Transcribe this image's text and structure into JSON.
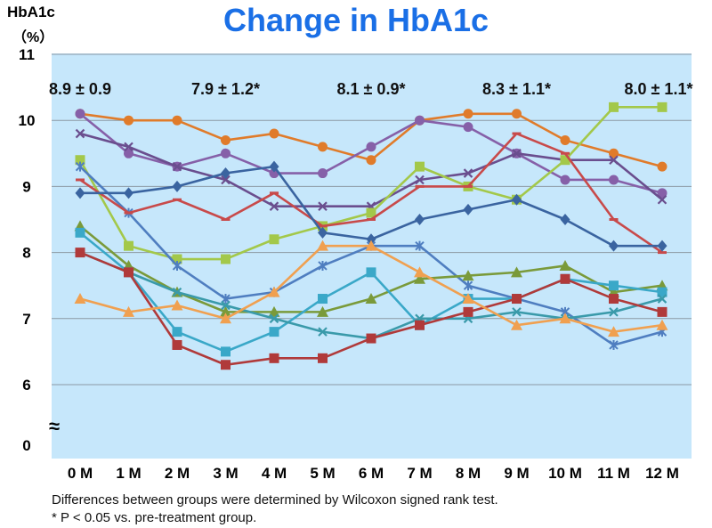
{
  "title": "Change in HbA1c",
  "y_axis": {
    "label": "HbA1c",
    "unit": "（%）"
  },
  "footnotes": [
    "Differences between groups were determined by Wilcoxon signed rank test.",
    "* P < 0.05 vs. pre-treatment group."
  ],
  "axis_break_symbol": "≈",
  "colors": {
    "plot_background": "#c6e7fb",
    "gridline": "#8c9aa4"
  },
  "chart_data": {
    "type": "line",
    "x": [
      "0 M",
      "1 M",
      "2 M",
      "3 M",
      "4 M",
      "5 M",
      "6 M",
      "7 M",
      "8 M",
      "9 M",
      "10 M",
      "11 M",
      "12 M"
    ],
    "y_ticks": [
      11,
      10,
      9,
      8,
      7,
      6,
      0
    ],
    "ylim": [
      6,
      11
    ],
    "y_axis_break": "between 0 and 6",
    "grid": true,
    "annotations": [
      {
        "text": "8.9 ± 0.9",
        "at_x": "0 M"
      },
      {
        "text": "7.9 ± 1.2*",
        "at_x": "3 M"
      },
      {
        "text": "8.1 ± 0.9*",
        "at_x": "6 M"
      },
      {
        "text": "8.3 ± 1.1*",
        "at_x": "9 M"
      },
      {
        "text": "8.0 ± 1.1*",
        "at_x": "12 M"
      }
    ],
    "series": [
      {
        "color": "#e07b2a",
        "marker": "circle",
        "values": [
          10.1,
          10.0,
          10.0,
          9.7,
          9.8,
          9.6,
          9.4,
          10.0,
          10.1,
          10.1,
          9.7,
          9.5,
          9.3
        ]
      },
      {
        "color": "#8660a8",
        "marker": "circle",
        "values": [
          10.1,
          9.5,
          9.3,
          9.5,
          9.2,
          9.2,
          9.6,
          10.0,
          9.9,
          9.5,
          9.1,
          9.1,
          8.9
        ]
      },
      {
        "color": "#6a4e8e",
        "marker": "x",
        "values": [
          9.8,
          9.6,
          9.3,
          9.1,
          8.7,
          8.7,
          8.7,
          9.1,
          9.2,
          9.5,
          9.4,
          9.4,
          8.8
        ]
      },
      {
        "color": "#a3c84a",
        "marker": "square",
        "values": [
          9.4,
          8.1,
          7.9,
          7.9,
          8.2,
          8.4,
          8.6,
          9.3,
          9.0,
          8.8,
          9.4,
          10.2,
          10.2
        ]
      },
      {
        "color": "#4f7ec0",
        "marker": "star",
        "values": [
          9.3,
          8.6,
          7.8,
          7.3,
          7.4,
          7.8,
          8.1,
          8.1,
          7.5,
          7.3,
          7.1,
          6.6,
          6.8
        ]
      },
      {
        "color": "#c84a4a",
        "marker": "dash",
        "values": [
          9.1,
          8.6,
          8.8,
          8.5,
          8.9,
          8.4,
          8.5,
          9.0,
          9.0,
          9.8,
          9.5,
          8.5,
          8.0
        ]
      },
      {
        "color": "#3a64a0",
        "marker": "diamond",
        "values": [
          8.9,
          8.9,
          9.0,
          9.2,
          9.3,
          8.3,
          8.2,
          8.5,
          8.65,
          8.8,
          8.5,
          8.1,
          8.1
        ]
      },
      {
        "color": "#7a9a3a",
        "marker": "triangle",
        "values": [
          8.4,
          7.8,
          7.4,
          7.1,
          7.1,
          7.1,
          7.3,
          7.6,
          7.65,
          7.7,
          7.8,
          7.4,
          7.5
        ]
      },
      {
        "color": "#3aa8c8",
        "marker": "square",
        "values": [
          8.3,
          7.7,
          6.8,
          6.5,
          6.8,
          7.3,
          7.7,
          6.9,
          7.3,
          7.3,
          7.6,
          7.5,
          7.4
        ]
      },
      {
        "color": "#3a9aaa",
        "marker": "x",
        "values": [
          8.0,
          7.7,
          7.4,
          7.2,
          7.0,
          6.8,
          6.7,
          7.0,
          7.0,
          7.1,
          7.0,
          7.1,
          7.3
        ]
      },
      {
        "color": "#b03a3a",
        "marker": "square",
        "values": [
          8.0,
          7.7,
          6.6,
          6.3,
          6.4,
          6.4,
          6.7,
          6.9,
          7.1,
          7.3,
          7.6,
          7.3,
          7.1
        ]
      },
      {
        "color": "#f0a050",
        "marker": "triangle",
        "values": [
          7.3,
          7.1,
          7.2,
          7.0,
          7.4,
          8.1,
          8.1,
          7.7,
          7.3,
          6.9,
          7.0,
          6.8,
          6.9
        ]
      }
    ]
  }
}
